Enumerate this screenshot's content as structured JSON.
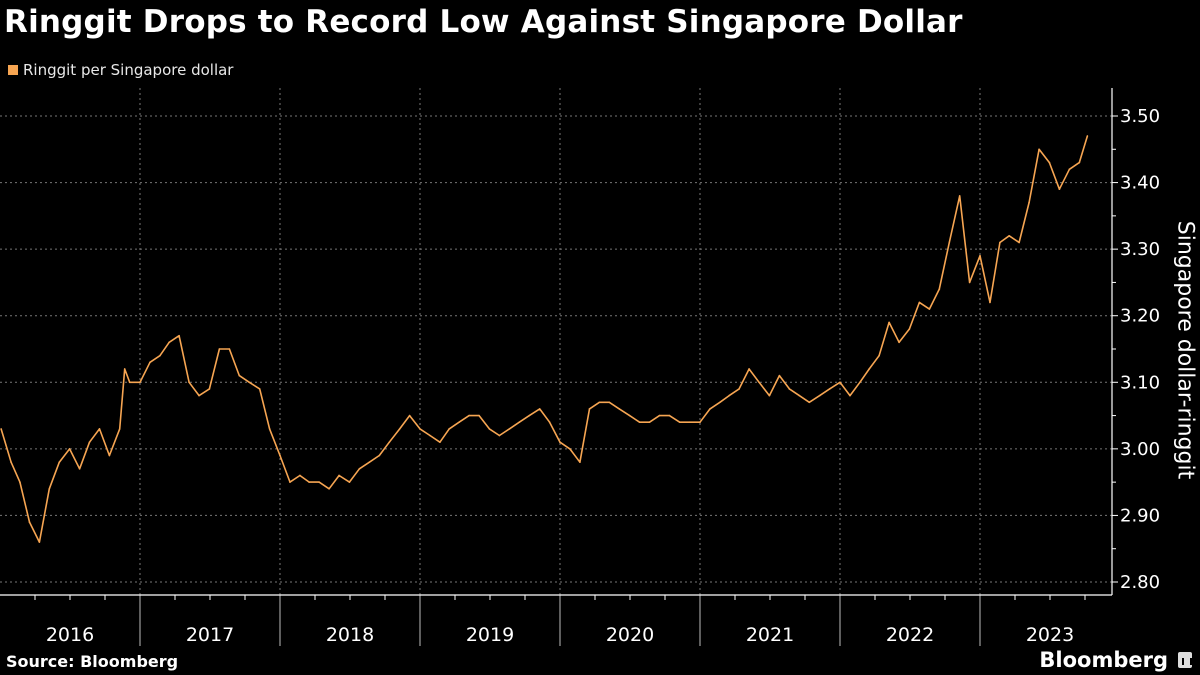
{
  "title": "Ringgit Drops to Record Low Against Singapore Dollar",
  "source": "Source: Bloomberg",
  "logo": "Bloomberg",
  "chart_data": {
    "type": "line",
    "title": "Ringgit Drops to Record Low Against Singapore Dollar",
    "ylabel": "Singapore dollar-ringgit",
    "xlabel": "",
    "ylim": [
      2.8,
      3.5
    ],
    "xlim": [
      "2016-01-01",
      "2023-12-31"
    ],
    "yticks": [
      "2.80",
      "2.90",
      "3.00",
      "3.10",
      "3.20",
      "3.30",
      "3.40",
      "3.50"
    ],
    "xticks": [
      "2016",
      "2017",
      "2018",
      "2019",
      "2020",
      "2021",
      "2022",
      "2023"
    ],
    "grid": true,
    "y_axis_side": "right",
    "legend_position": "top-left",
    "series": [
      {
        "name": "Ringgit per Singapore dollar",
        "color": "#f6a552",
        "x": [
          "2016-01-04",
          "2016-01-30",
          "2016-02-22",
          "2016-03-18",
          "2016-04-13",
          "2016-05-09",
          "2016-06-04",
          "2016-07-01",
          "2016-07-27",
          "2016-08-22",
          "2016-09-17",
          "2016-10-13",
          "2016-11-09",
          "2016-11-22",
          "2016-12-05",
          "2017-01-01",
          "2017-01-27",
          "2017-02-22",
          "2017-03-18",
          "2017-04-13",
          "2017-05-09",
          "2017-06-04",
          "2017-07-01",
          "2017-07-27",
          "2017-08-22",
          "2017-09-17",
          "2017-10-13",
          "2017-11-09",
          "2017-12-05",
          "2018-01-01",
          "2018-01-27",
          "2018-02-22",
          "2018-03-18",
          "2018-04-13",
          "2018-05-09",
          "2018-06-04",
          "2018-07-01",
          "2018-07-27",
          "2018-08-22",
          "2018-09-17",
          "2018-10-13",
          "2018-11-09",
          "2018-12-05",
          "2019-01-01",
          "2019-01-27",
          "2019-02-22",
          "2019-03-18",
          "2019-04-13",
          "2019-05-09",
          "2019-06-04",
          "2019-07-01",
          "2019-07-27",
          "2019-08-22",
          "2019-09-17",
          "2019-10-13",
          "2019-11-09",
          "2019-12-05",
          "2020-01-01",
          "2020-01-27",
          "2020-02-22",
          "2020-03-18",
          "2020-04-13",
          "2020-05-09",
          "2020-06-04",
          "2020-07-01",
          "2020-07-27",
          "2020-08-22",
          "2020-09-17",
          "2020-10-13",
          "2020-11-09",
          "2020-12-05",
          "2021-01-01",
          "2021-01-27",
          "2021-02-22",
          "2021-03-18",
          "2021-04-13",
          "2021-05-09",
          "2021-06-04",
          "2021-07-01",
          "2021-07-27",
          "2021-08-22",
          "2021-09-17",
          "2021-10-13",
          "2021-11-09",
          "2021-12-05",
          "2022-01-01",
          "2022-01-27",
          "2022-02-22",
          "2022-03-18",
          "2022-04-13",
          "2022-05-09",
          "2022-06-04",
          "2022-07-01",
          "2022-07-27",
          "2022-08-22",
          "2022-09-17",
          "2022-10-13",
          "2022-11-09",
          "2022-12-05",
          "2023-01-01",
          "2023-01-27",
          "2023-02-22",
          "2023-03-18",
          "2023-04-13",
          "2023-05-09",
          "2023-06-04",
          "2023-07-01",
          "2023-07-27",
          "2023-08-22",
          "2023-09-17",
          "2023-10-08"
        ],
        "y": [
          3.03,
          2.98,
          2.95,
          2.89,
          2.86,
          2.94,
          2.98,
          3.0,
          2.97,
          3.01,
          3.03,
          2.99,
          3.03,
          3.12,
          3.1,
          3.1,
          3.13,
          3.14,
          3.16,
          3.17,
          3.1,
          3.08,
          3.09,
          3.15,
          3.15,
          3.11,
          3.1,
          3.09,
          3.03,
          2.99,
          2.95,
          2.96,
          2.95,
          2.95,
          2.94,
          2.96,
          2.95,
          2.97,
          2.98,
          2.99,
          3.01,
          3.03,
          3.05,
          3.03,
          3.02,
          3.01,
          3.03,
          3.04,
          3.05,
          3.05,
          3.03,
          3.02,
          3.03,
          3.04,
          3.05,
          3.06,
          3.04,
          3.01,
          3.0,
          2.98,
          3.06,
          3.07,
          3.07,
          3.06,
          3.05,
          3.04,
          3.04,
          3.05,
          3.05,
          3.04,
          3.04,
          3.04,
          3.06,
          3.07,
          3.08,
          3.09,
          3.12,
          3.1,
          3.08,
          3.11,
          3.09,
          3.08,
          3.07,
          3.08,
          3.09,
          3.1,
          3.08,
          3.1,
          3.12,
          3.14,
          3.19,
          3.16,
          3.18,
          3.22,
          3.21,
          3.24,
          3.31,
          3.38,
          3.25,
          3.29,
          3.22,
          3.31,
          3.32,
          3.31,
          3.37,
          3.45,
          3.43,
          3.39,
          3.42,
          3.43,
          3.47
        ]
      }
    ]
  }
}
